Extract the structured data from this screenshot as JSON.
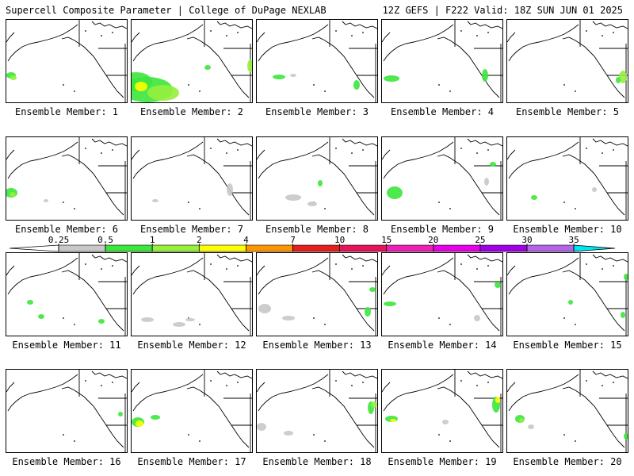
{
  "header": {
    "left_title": "Supercell Composite Parameter | College of DuPage NEXLAB",
    "right_title": "12Z GEFS | F222 Valid: 18Z SUN JUN 01 2025"
  },
  "members": [
    {
      "label": "Ensemble Member: 1"
    },
    {
      "label": "Ensemble Member: 2"
    },
    {
      "label": "Ensemble Member: 3"
    },
    {
      "label": "Ensemble Member: 4"
    },
    {
      "label": "Ensemble Member: 5"
    },
    {
      "label": "Ensemble Member: 6"
    },
    {
      "label": "Ensemble Member: 7"
    },
    {
      "label": "Ensemble Member: 8"
    },
    {
      "label": "Ensemble Member: 9"
    },
    {
      "label": "Ensemble Member: 10"
    },
    {
      "label": "Ensemble Member: 11"
    },
    {
      "label": "Ensemble Member: 12"
    },
    {
      "label": "Ensemble Member: 13"
    },
    {
      "label": "Ensemble Member: 14"
    },
    {
      "label": "Ensemble Member: 15"
    },
    {
      "label": "Ensemble Member: 16"
    },
    {
      "label": "Ensemble Member: 17"
    },
    {
      "label": "Ensemble Member: 18"
    },
    {
      "label": "Ensemble Member: 19"
    },
    {
      "label": "Ensemble Member: 20"
    }
  ],
  "colorbar": {
    "ticks": [
      "0.25",
      "0.5",
      "1",
      "2",
      "4",
      "7",
      "10",
      "15",
      "20",
      "25",
      "30",
      "35"
    ],
    "colors": [
      "#c8c8c8",
      "#3ce63c",
      "#96f03c",
      "#ffff00",
      "#ff9600",
      "#e61e1e",
      "#e6145a",
      "#f01eb4",
      "#e600e6",
      "#a000e6",
      "#b464e6",
      "#00e6f0"
    ]
  }
}
